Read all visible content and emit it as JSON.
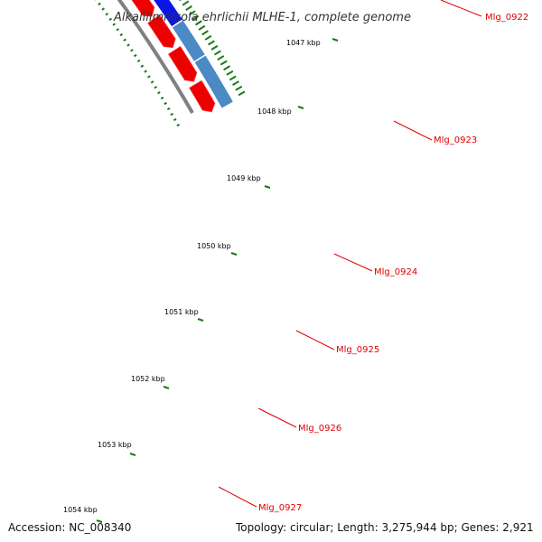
{
  "title": "Alkalilimnicola ehrlichii MLHE-1, complete genome",
  "footer": {
    "accession": "Accession: NC_008340",
    "summary": "Topology: circular; Length: 3,275,944 bp; Genes: 2,921"
  },
  "scale_labels": [
    "1047 kbp",
    "1048 kbp",
    "1049 kbp",
    "1050 kbp",
    "1051 kbp",
    "1052 kbp",
    "1053 kbp",
    "1054 kbp"
  ],
  "genes": [
    {
      "label": "Mlg_0922",
      "track_color": "#c8bd6a"
    },
    {
      "label": "Mlg_0923",
      "track_color": "#ff2e93"
    },
    {
      "label": "Mlg_0924",
      "track_color": "#0b16e6"
    },
    {
      "label": "Mlg_0925",
      "track_color": "#0b16e6"
    },
    {
      "label": "Mlg_0926",
      "track_color": "#4b8ac4"
    },
    {
      "label": "Mlg_0927",
      "track_color": "#4b8ac4"
    }
  ],
  "colors": {
    "backbone": "#808080",
    "cds_forward": "#ee0000",
    "gene_label": "#e00000",
    "tick_green": "#1a7a1a"
  }
}
